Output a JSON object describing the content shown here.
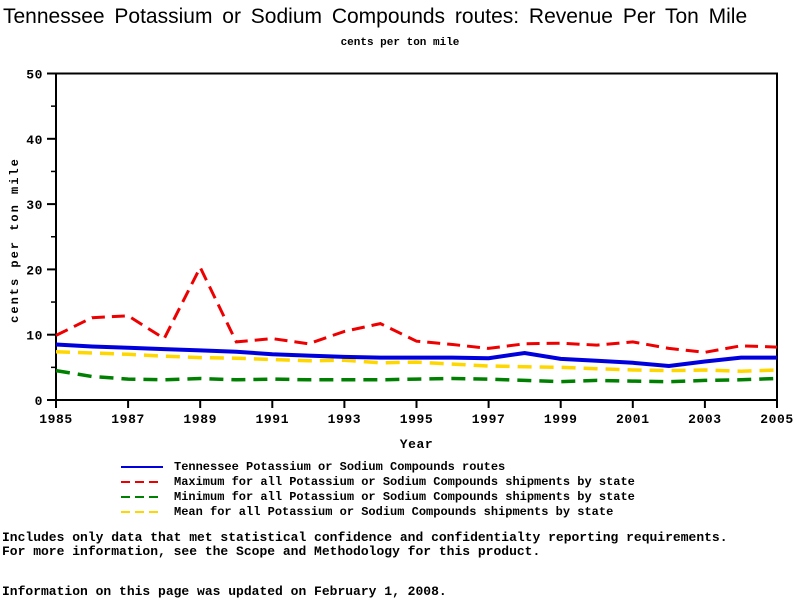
{
  "header": {
    "title": "Tennessee Potassium or Sodium Compounds routes: Revenue Per Ton Mile",
    "subtitle": "cents per ton mile"
  },
  "chart_data": {
    "type": "line",
    "title": "Tennessee Potassium or Sodium Compounds routes: Revenue Per Ton Mile",
    "subtitle": "cents per ton mile",
    "xlabel": "Year",
    "ylabel": "cents per ton mile",
    "xlim": [
      1985,
      2005
    ],
    "ylim": [
      0,
      50
    ],
    "xticks": [
      1985,
      1987,
      1989,
      1991,
      1993,
      1995,
      1997,
      1999,
      2001,
      2003,
      2005
    ],
    "yticks": [
      0,
      10,
      20,
      30,
      40,
      50
    ],
    "yminor": [
      5,
      15,
      25,
      35,
      45
    ],
    "grid": "off",
    "legend_position": "bottom",
    "axis_color": "#000000",
    "x": [
      1985,
      1986,
      1987,
      1988,
      1989,
      1990,
      1991,
      1992,
      1993,
      1994,
      1995,
      1996,
      1997,
      1998,
      1999,
      2000,
      2001,
      2002,
      2003,
      2004,
      2005
    ],
    "series": [
      {
        "name": "tennessee-routes",
        "label": "Tennessee Potassium or Sodium Compounds routes",
        "color": "#0000dd",
        "dash": "",
        "width": 4,
        "values": [
          8.5,
          8.2,
          8.0,
          7.8,
          7.6,
          7.4,
          7.0,
          6.8,
          6.6,
          6.5,
          6.5,
          6.5,
          6.4,
          7.2,
          6.3,
          6.0,
          5.7,
          5.2,
          5.9,
          6.5,
          6.5
        ]
      },
      {
        "name": "maximum-by-state",
        "label": "Maximum for all Potassium or Sodium Compounds shipments by state",
        "color": "#ee0000",
        "dash": "13,7",
        "width": 3,
        "values": [
          9.9,
          12.6,
          12.9,
          9.4,
          20.3,
          8.9,
          9.4,
          8.6,
          10.5,
          11.7,
          9.0,
          8.5,
          7.9,
          8.6,
          8.7,
          8.4,
          8.9,
          7.9,
          7.3,
          8.3,
          8.1
        ]
      },
      {
        "name": "minimum-by-state",
        "label": "Minimum for all Potassium or Sodium Compounds shipments by state",
        "color": "#008000",
        "dash": "14,8",
        "width": 3.5,
        "values": [
          4.5,
          3.6,
          3.2,
          3.1,
          3.3,
          3.1,
          3.2,
          3.1,
          3.1,
          3.1,
          3.2,
          3.3,
          3.2,
          3.0,
          2.8,
          3.0,
          2.9,
          2.8,
          3.0,
          3.1,
          3.3
        ]
      },
      {
        "name": "mean-by-state",
        "label": "Mean for all Potassium or Sodium Compounds shipments by state",
        "color": "#ffd700",
        "dash": "14,8",
        "width": 3.5,
        "values": [
          7.4,
          7.2,
          7.0,
          6.7,
          6.5,
          6.4,
          6.2,
          6.0,
          6.1,
          5.7,
          5.8,
          5.5,
          5.2,
          5.1,
          5.0,
          4.8,
          4.6,
          4.5,
          4.6,
          4.4,
          4.6
        ]
      }
    ]
  },
  "footer": {
    "line1": "Includes only data that met statistical confidence and confidentialty reporting requirements.",
    "line2": "For more information, see the Scope and Methodology for this product.",
    "updated": "Information on this page was updated on February 1, 2008."
  }
}
